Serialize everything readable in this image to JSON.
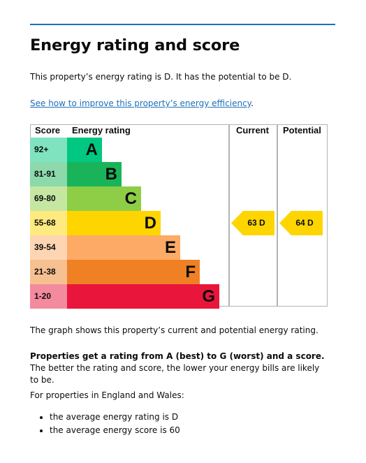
{
  "page": {
    "title": "Energy rating and score",
    "intro": "This property’s energy rating is D. It has the potential to be D.",
    "link_text": "See how to improve this property’s energy efficiency",
    "link_suffix": ".",
    "graph_note": "The graph shows this property’s current and potential energy rating.",
    "rating_bold": "Properties get a rating from A (best) to G (worst) and a score.",
    "rating_rest": " The better the rating and score, the lower your energy bills are likely to be.",
    "region_intro": "For properties in England and Wales:",
    "stats": [
      "the average energy rating is D",
      "the average energy score is 60"
    ]
  },
  "chart": {
    "headers": {
      "score": "Score",
      "rating": "Energy rating",
      "current": "Current",
      "potential": "Potential"
    },
    "bands": [
      {
        "range": "92+",
        "letter": "A",
        "color": "#00c781",
        "score_bg": "#80e3c0"
      },
      {
        "range": "81-91",
        "letter": "B",
        "color": "#19b459",
        "score_bg": "#8cd9ac"
      },
      {
        "range": "69-80",
        "letter": "C",
        "color": "#8dce46",
        "score_bg": "#c6e7a2"
      },
      {
        "range": "55-68",
        "letter": "D",
        "color": "#ffd500",
        "score_bg": "#ffea80"
      },
      {
        "range": "39-54",
        "letter": "E",
        "color": "#fcaa65",
        "score_bg": "#fed5b2"
      },
      {
        "range": "21-38",
        "letter": "F",
        "color": "#ef8023",
        "score_bg": "#f7c091"
      },
      {
        "range": "1-20",
        "letter": "G",
        "color": "#e9153b",
        "score_bg": "#f48a9d"
      }
    ],
    "current": {
      "label": "63 D",
      "score": 63,
      "band": "D"
    },
    "potential": {
      "label": "64 D",
      "score": 64,
      "band": "D"
    }
  }
}
